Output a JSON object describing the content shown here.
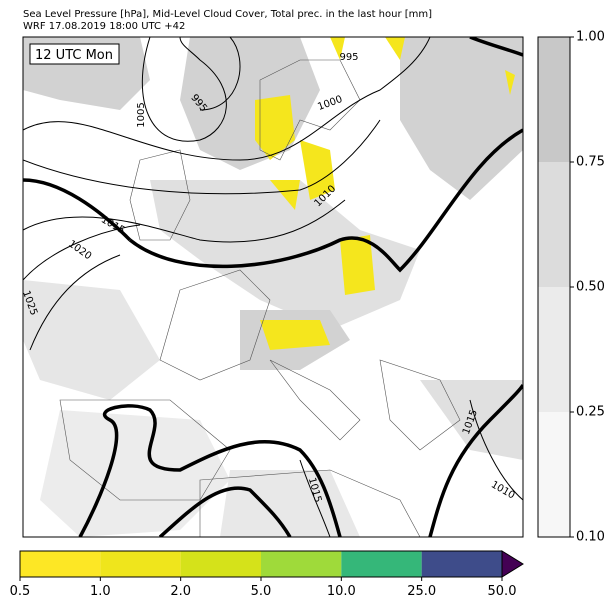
{
  "header": {
    "title": "Sea Level Pressure [hPa], Mid-Level Cloud Cover, Total prec. in the last hour [mm]",
    "subtitle": "WRF 17.08.2019 18:00 UTC +42"
  },
  "map": {
    "time_label": "12 UTC Mon",
    "contour_labels": [
      "995",
      "995",
      "1000",
      "1005",
      "1010",
      "1015",
      "1020",
      "1025",
      "1015",
      "1010",
      "1015"
    ]
  },
  "cloud_colorbar": {
    "colors": [
      "#f7f7f7",
      "#ebebeb",
      "#dcdcdc",
      "#c8c8c8"
    ],
    "ticks": [
      {
        "value": 0.1,
        "label": "0.10"
      },
      {
        "value": 0.25,
        "label": "0.25"
      },
      {
        "value": 0.5,
        "label": "0.50"
      },
      {
        "value": 0.75,
        "label": "0.75"
      },
      {
        "value": 1,
        "label": "1.00"
      }
    ]
  },
  "precip_colorbar": {
    "colors": [
      "#fde725",
      "#efe51c",
      "#d5e21a",
      "#9fda3a",
      "#35b779",
      "#3e4c8a"
    ],
    "extend_color": "#440154",
    "ticks": [
      0.5,
      {
        "value": 1,
        "label": "1.0"
      },
      {
        "value": 2,
        "label": "2.0"
      },
      {
        "value": 5,
        "label": "5.0"
      },
      {
        "value": 10,
        "label": "10.0"
      },
      {
        "value": 25,
        "label": "25.0"
      },
      {
        "value": 50,
        "label": "50.0"
      }
    ]
  }
}
